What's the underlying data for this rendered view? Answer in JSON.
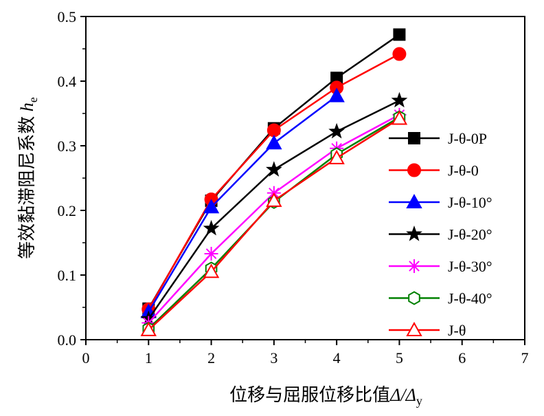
{
  "chart_data": {
    "type": "line",
    "title": "",
    "xlabel": "位移与屈服位移比值",
    "xlabel_symbol": "Δ/Δ",
    "xlabel_sub": "y",
    "ylabel": "等效黏滞阻尼系数",
    "ylabel_symbol": "h",
    "ylabel_sub": "e",
    "xlim": [
      0,
      7
    ],
    "ylim": [
      0.0,
      0.5
    ],
    "xticks": [
      "0",
      "1",
      "2",
      "3",
      "4",
      "5",
      "6",
      "7"
    ],
    "yticks": [
      "0.0",
      "0.1",
      "0.2",
      "0.3",
      "0.4",
      "0.5"
    ],
    "x": [
      1,
      2,
      3,
      4,
      5
    ],
    "legend_position": "center-right",
    "series": [
      {
        "name": "J-θ-0P",
        "values": [
          0.048,
          0.215,
          0.327,
          0.405,
          0.472
        ],
        "color": "#000000",
        "marker": "square",
        "filled": true
      },
      {
        "name": "J-θ-0",
        "values": [
          0.047,
          0.217,
          0.324,
          0.39,
          0.442
        ],
        "color": "#ff0000",
        "marker": "circle",
        "filled": true
      },
      {
        "name": "J-θ-10°",
        "values": [
          0.043,
          0.205,
          0.304,
          0.377,
          null
        ],
        "color": "#0000ff",
        "marker": "triangle",
        "filled": true
      },
      {
        "name": "J-θ-20°",
        "values": [
          0.032,
          0.172,
          0.263,
          0.322,
          0.37
        ],
        "color": "#000000",
        "marker": "star",
        "filled": true
      },
      {
        "name": "J-θ-30°",
        "values": [
          0.026,
          0.133,
          0.227,
          0.296,
          0.348
        ],
        "color": "#ff00ff",
        "marker": "asterisk",
        "filled": false
      },
      {
        "name": "J-θ-40°",
        "values": [
          0.017,
          0.11,
          0.213,
          0.287,
          0.344
        ],
        "color": "#008000",
        "marker": "hexagon",
        "filled": false
      },
      {
        "name": "J-θ",
        "values": [
          0.015,
          0.105,
          0.215,
          0.281,
          0.342
        ],
        "color": "#ff0000",
        "marker": "triangle",
        "filled": false
      }
    ]
  }
}
